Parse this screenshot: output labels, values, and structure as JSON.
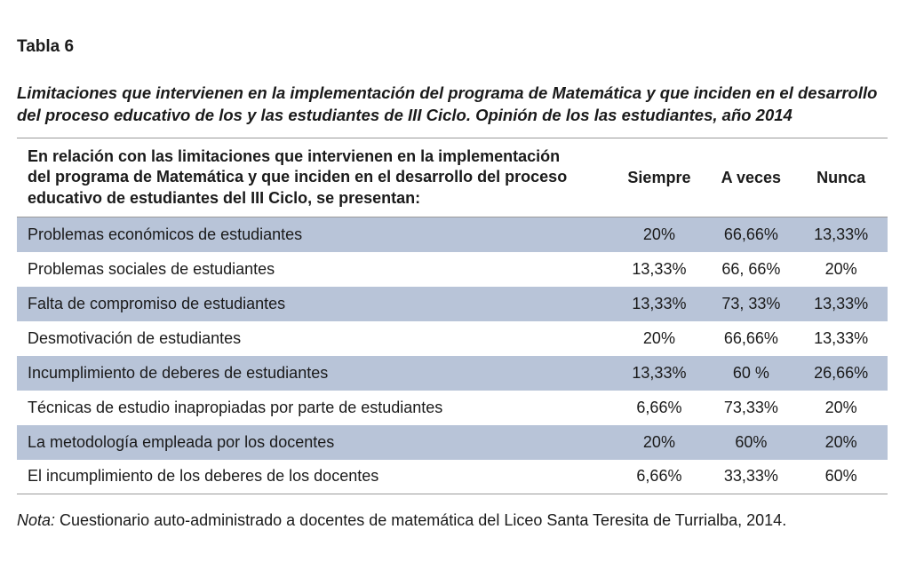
{
  "table_label": "Tabla 6",
  "caption_lines": [
    "Limitaciones que intervienen en la implementación del programa de Matemática y que inciden en el desarrollo",
    "del proceso educativo de los y las estudiantes de III Ciclo. Opinión de los las estudiantes, año 2014"
  ],
  "table": {
    "header": {
      "description_lines": [
        "En relación con las limitaciones que intervienen en la implementación",
        "del programa de Matemática y que inciden en el desarrollo del proceso",
        "educativo de estudiantes del III Ciclo, se presentan:"
      ],
      "siempre": "Siempre",
      "a_veces": "A veces",
      "nunca": "Nunca"
    },
    "rows": [
      {
        "label": "Problemas económicos de estudiantes",
        "siempre": "20%",
        "a_veces": "66,66%",
        "nunca": "13,33%"
      },
      {
        "label": "Problemas sociales de estudiantes",
        "siempre": "13,33%",
        "a_veces": "66, 66%",
        "nunca": "20%"
      },
      {
        "label": "Falta de compromiso de estudiantes",
        "siempre": "13,33%",
        "a_veces": "73, 33%",
        "nunca": "13,33%"
      },
      {
        "label": "Desmotivación de estudiantes",
        "siempre": "20%",
        "a_veces": "66,66%",
        "nunca": "13,33%"
      },
      {
        "label": "Incumplimiento de deberes de estudiantes",
        "siempre": "13,33%",
        "a_veces": "60 %",
        "nunca": "26,66%"
      },
      {
        "label": "Técnicas de estudio inapropiadas por parte de estudiantes",
        "siempre": "6,66%",
        "a_veces": "73,33%",
        "nunca": "20%"
      },
      {
        "label": "La metodología empleada por los docentes",
        "siempre": "20%",
        "a_veces": "60%",
        "nunca": "20%"
      },
      {
        "label": "El incumplimiento de los deberes de los docentes",
        "siempre": "6,66%",
        "a_veces": "33,33%",
        "nunca": "60%"
      }
    ]
  },
  "note": {
    "label": "Nota:",
    "text": " Cuestionario auto-administrado a docentes de matemática del Liceo Santa Teresita de Turrialba, 2014."
  },
  "colors": {
    "row_shade": "#b8c4d8",
    "rule": "#9a9a9a"
  }
}
